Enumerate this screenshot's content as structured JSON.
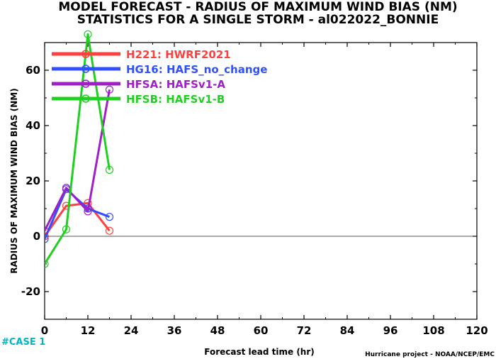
{
  "chart_data": {
    "type": "line",
    "title": "MODEL FORECAST - RADIUS OF MAXIMUM WIND BIAS (NM)",
    "subtitle": "STATISTICS FOR A SINGLE STORM - al022022_BONNIE",
    "xlabel": "Forecast lead time (hr)",
    "ylabel": "RADIUS OF MAXIMUM WIND BIAS (NM)",
    "xlim": [
      0,
      120
    ],
    "ylim": [
      -30,
      70
    ],
    "xticks": [
      0,
      12,
      24,
      36,
      48,
      60,
      72,
      84,
      96,
      108,
      120
    ],
    "yticks": [
      -20,
      0,
      20,
      40,
      60
    ],
    "zero_line": true,
    "legend_position": "top-left",
    "series": [
      {
        "name": "H221: HWRF2021",
        "color": "#ff4040",
        "x": [
          0,
          6,
          12,
          18
        ],
        "y": [
          0,
          11,
          12,
          2
        ]
      },
      {
        "name": "HG16: HAFS_no_change",
        "color": "#3050ff",
        "x": [
          0,
          6,
          12,
          18
        ],
        "y": [
          -1,
          17,
          10,
          7
        ]
      },
      {
        "name": "HFSA: HAFSv1-A",
        "color": "#a020c8",
        "x": [
          0,
          6,
          12,
          18
        ],
        "y": [
          2,
          17.5,
          9,
          53
        ]
      },
      {
        "name": "HFSB: HAFSv1-B",
        "color": "#20d020",
        "x": [
          0,
          6,
          12,
          18
        ],
        "y": [
          -10,
          2.5,
          73,
          24
        ]
      }
    ]
  },
  "footer": {
    "case_label": "#CASE  1",
    "credit": "Hurricane project - NOAA/NCEP/EMC"
  }
}
